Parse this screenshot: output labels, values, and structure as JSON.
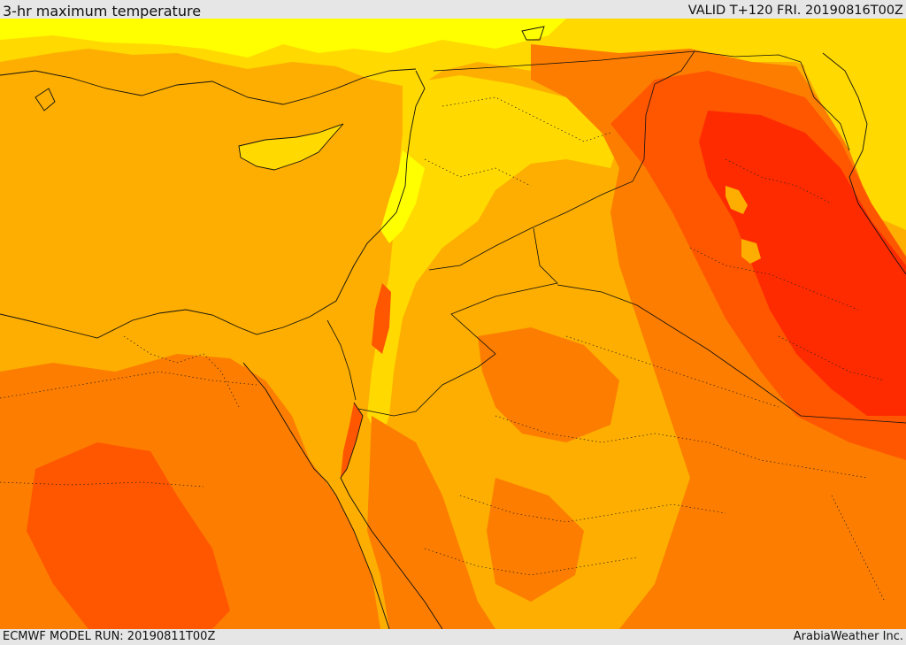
{
  "header": {
    "title": "3-hr maximum temperature",
    "valid_label": "VALID T+120 FRI. 20190816T00Z"
  },
  "footer": {
    "model_run": "ECMWF MODEL RUN: 20190811T00Z",
    "credit": "ArabiaWeather Inc."
  },
  "colors": {
    "sea": "#fdae00",
    "warm": "#fdae00",
    "cooler": "#ffd900",
    "coolest": "#ffff00",
    "hot": "#fd7d00",
    "very_hot": "#ff5600",
    "extreme": "#ff2b00",
    "frame": "#e6e6e6"
  }
}
